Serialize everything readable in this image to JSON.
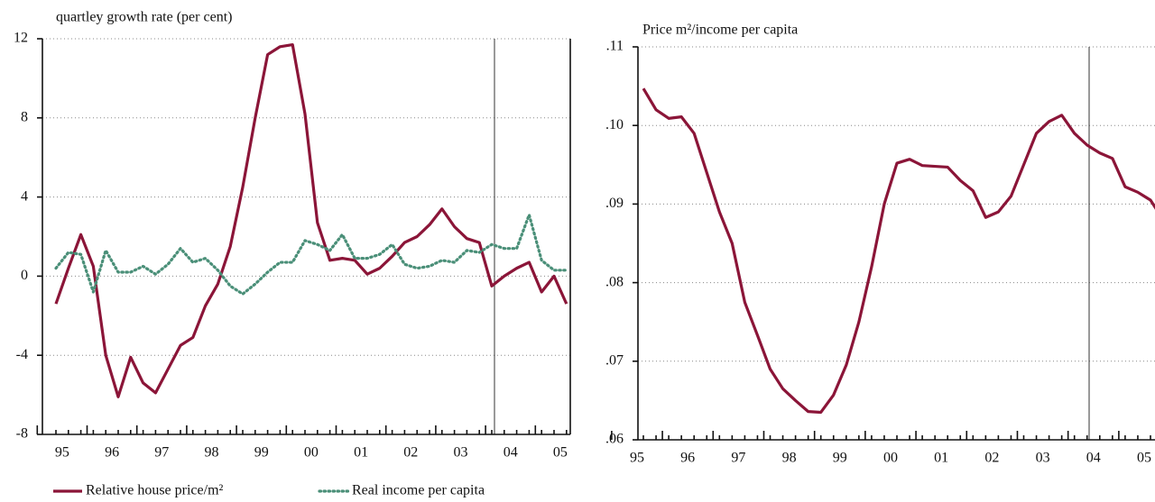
{
  "chart_data": [
    {
      "type": "line",
      "title": "quartley growth rate (per cent)",
      "categories": [
        null,
        "95",
        null,
        null,
        null,
        "96",
        null,
        null,
        null,
        "97",
        null,
        null,
        null,
        "98",
        null,
        null,
        null,
        "99",
        null,
        null,
        null,
        "00",
        null,
        null,
        null,
        "01",
        null,
        null,
        null,
        "02",
        null,
        null,
        null,
        "03",
        null,
        null,
        null,
        "04",
        null,
        null,
        null,
        "05"
      ],
      "series": [
        {
          "name": "Relative house price/m²",
          "color": "#8b1538",
          "dash": "solid",
          "values": [
            -1.4,
            0.4,
            2.1,
            0.5,
            -4.0,
            -6.1,
            -4.1,
            -5.4,
            -5.9,
            -4.7,
            -3.5,
            -3.1,
            -1.5,
            -0.4,
            1.5,
            4.5,
            8.0,
            11.2,
            11.6,
            11.7,
            8.2,
            2.7,
            0.8,
            0.9,
            0.8,
            0.1,
            0.4,
            1.0,
            1.7,
            2.0,
            2.6,
            3.4,
            2.5,
            1.9,
            1.7,
            -0.5,
            0.0,
            0.4,
            0.7,
            -0.8,
            0.0,
            -1.4
          ]
        },
        {
          "name": "Real income per capita",
          "color": "#4a8f78",
          "dash": "dotted",
          "values": [
            0.4,
            1.2,
            1.1,
            -0.8,
            1.3,
            0.2,
            0.2,
            0.5,
            0.1,
            0.6,
            1.4,
            0.7,
            0.9,
            0.3,
            -0.5,
            -0.9,
            -0.4,
            0.2,
            0.7,
            0.7,
            1.8,
            1.6,
            1.3,
            2.1,
            0.9,
            0.9,
            1.1,
            1.6,
            0.6,
            0.4,
            0.5,
            0.8,
            0.7,
            1.3,
            1.2,
            1.6,
            1.4,
            1.4,
            3.1,
            0.8,
            0.3,
            0.3
          ]
        }
      ],
      "ylim": [
        -8,
        12
      ],
      "yticks": [
        -8,
        -4,
        0,
        4,
        8,
        12
      ],
      "grid": true,
      "legend": "bottom"
    },
    {
      "type": "line",
      "title": "Price m²/income per capita",
      "categories": [
        "95",
        null,
        null,
        null,
        "96",
        null,
        null,
        null,
        "97",
        null,
        null,
        null,
        "98",
        null,
        null,
        null,
        "99",
        null,
        null,
        null,
        "00",
        null,
        null,
        null,
        "01",
        null,
        null,
        null,
        "02",
        null,
        null,
        null,
        "03",
        null,
        null,
        null,
        "04",
        null,
        null,
        null,
        "05",
        null
      ],
      "series": [
        {
          "color": "#8b1538",
          "dash": "solid",
          "values": [
            0.1047,
            0.102,
            0.1009,
            0.1011,
            0.099,
            0.094,
            0.089,
            0.085,
            0.0775,
            0.0733,
            0.069,
            0.0665,
            0.065,
            0.0636,
            0.0635,
            0.0657,
            0.0695,
            0.075,
            0.082,
            0.09,
            0.0952,
            0.0957,
            0.0949,
            0.0948,
            0.0947,
            0.093,
            0.0917,
            0.0883,
            0.089,
            0.091,
            0.095,
            0.099,
            0.1005,
            0.1013,
            0.099,
            0.0975,
            0.0965,
            0.0958,
            0.0922,
            0.0915,
            0.0905,
            0.088
          ]
        }
      ],
      "ylim": [
        0.06,
        0.11
      ],
      "yticks": [
        {
          "value": 0.06,
          "label": ".06"
        },
        {
          "value": 0.07,
          "label": ".07"
        },
        {
          "value": 0.08,
          "label": ".08"
        },
        {
          "value": 0.09,
          "label": ".09"
        },
        {
          "value": 0.1,
          "label": ".10"
        },
        {
          "value": 0.11,
          "label": ".11"
        }
      ],
      "grid": true
    }
  ]
}
